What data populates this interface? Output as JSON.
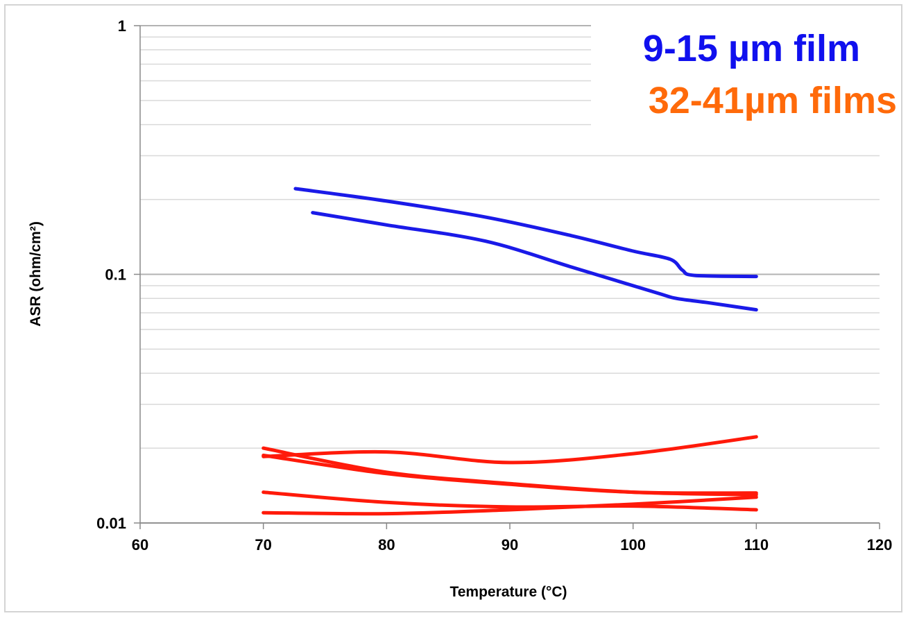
{
  "chart_data": {
    "type": "line",
    "title": "",
    "xlabel": "Temperature (°C)",
    "ylabel": "ASR (ohm/cm²)",
    "xlim": [
      60,
      120
    ],
    "ylim": [
      0.01,
      1
    ],
    "yscale": "log",
    "x_ticks": [
      "60",
      "70",
      "80",
      "90",
      "100",
      "110",
      "120"
    ],
    "y_ticks": [
      "0.01",
      "0.1",
      "1"
    ],
    "grid": "horizontal major and minor",
    "legend_placement": "top-right",
    "groups": [
      {
        "label": "9-15 µm film",
        "color": "#1010ee"
      },
      {
        "label": "32-41µm films",
        "color": "#ff6a0a"
      }
    ],
    "series": [
      {
        "group": 0,
        "color": "#1a1ae8",
        "points": [
          [
            72.6,
            0.221
          ],
          [
            80,
            0.197
          ],
          [
            88,
            0.17
          ],
          [
            95,
            0.143
          ],
          [
            100,
            0.124
          ],
          [
            103,
            0.115
          ],
          [
            104,
            0.104
          ],
          [
            105,
            0.099
          ],
          [
            110,
            0.098
          ]
        ]
      },
      {
        "group": 0,
        "color": "#1a1ae8",
        "points": [
          [
            74,
            0.177
          ],
          [
            80,
            0.158
          ],
          [
            88,
            0.136
          ],
          [
            95,
            0.107
          ],
          [
            102,
            0.084
          ],
          [
            103.5,
            0.08
          ],
          [
            106,
            0.077
          ],
          [
            110,
            0.072
          ]
        ]
      },
      {
        "group": 1,
        "color": "#ff1a0a",
        "points": [
          [
            70,
            0.0185
          ],
          [
            80,
            0.0193
          ],
          [
            90,
            0.0175
          ],
          [
            100,
            0.019
          ],
          [
            110,
            0.0222
          ]
        ]
      },
      {
        "group": 1,
        "color": "#ff1a0a",
        "points": [
          [
            70,
            0.02
          ],
          [
            80,
            0.016
          ],
          [
            90,
            0.0144
          ],
          [
            100,
            0.0133
          ],
          [
            110,
            0.013
          ]
        ]
      },
      {
        "group": 1,
        "color": "#ff1a0a",
        "points": [
          [
            70,
            0.0187
          ],
          [
            80,
            0.0158
          ],
          [
            90,
            0.0143
          ],
          [
            100,
            0.0133
          ],
          [
            110,
            0.0132
          ]
        ]
      },
      {
        "group": 1,
        "color": "#ff1a0a",
        "points": [
          [
            70,
            0.0133
          ],
          [
            80,
            0.0121
          ],
          [
            90,
            0.0116
          ],
          [
            100,
            0.0117
          ],
          [
            110,
            0.0113
          ]
        ]
      },
      {
        "group": 1,
        "color": "#ff1a0a",
        "points": [
          [
            70,
            0.011
          ],
          [
            80,
            0.0109
          ],
          [
            90,
            0.0113
          ],
          [
            100,
            0.0119
          ],
          [
            110,
            0.0127
          ]
        ]
      }
    ]
  }
}
